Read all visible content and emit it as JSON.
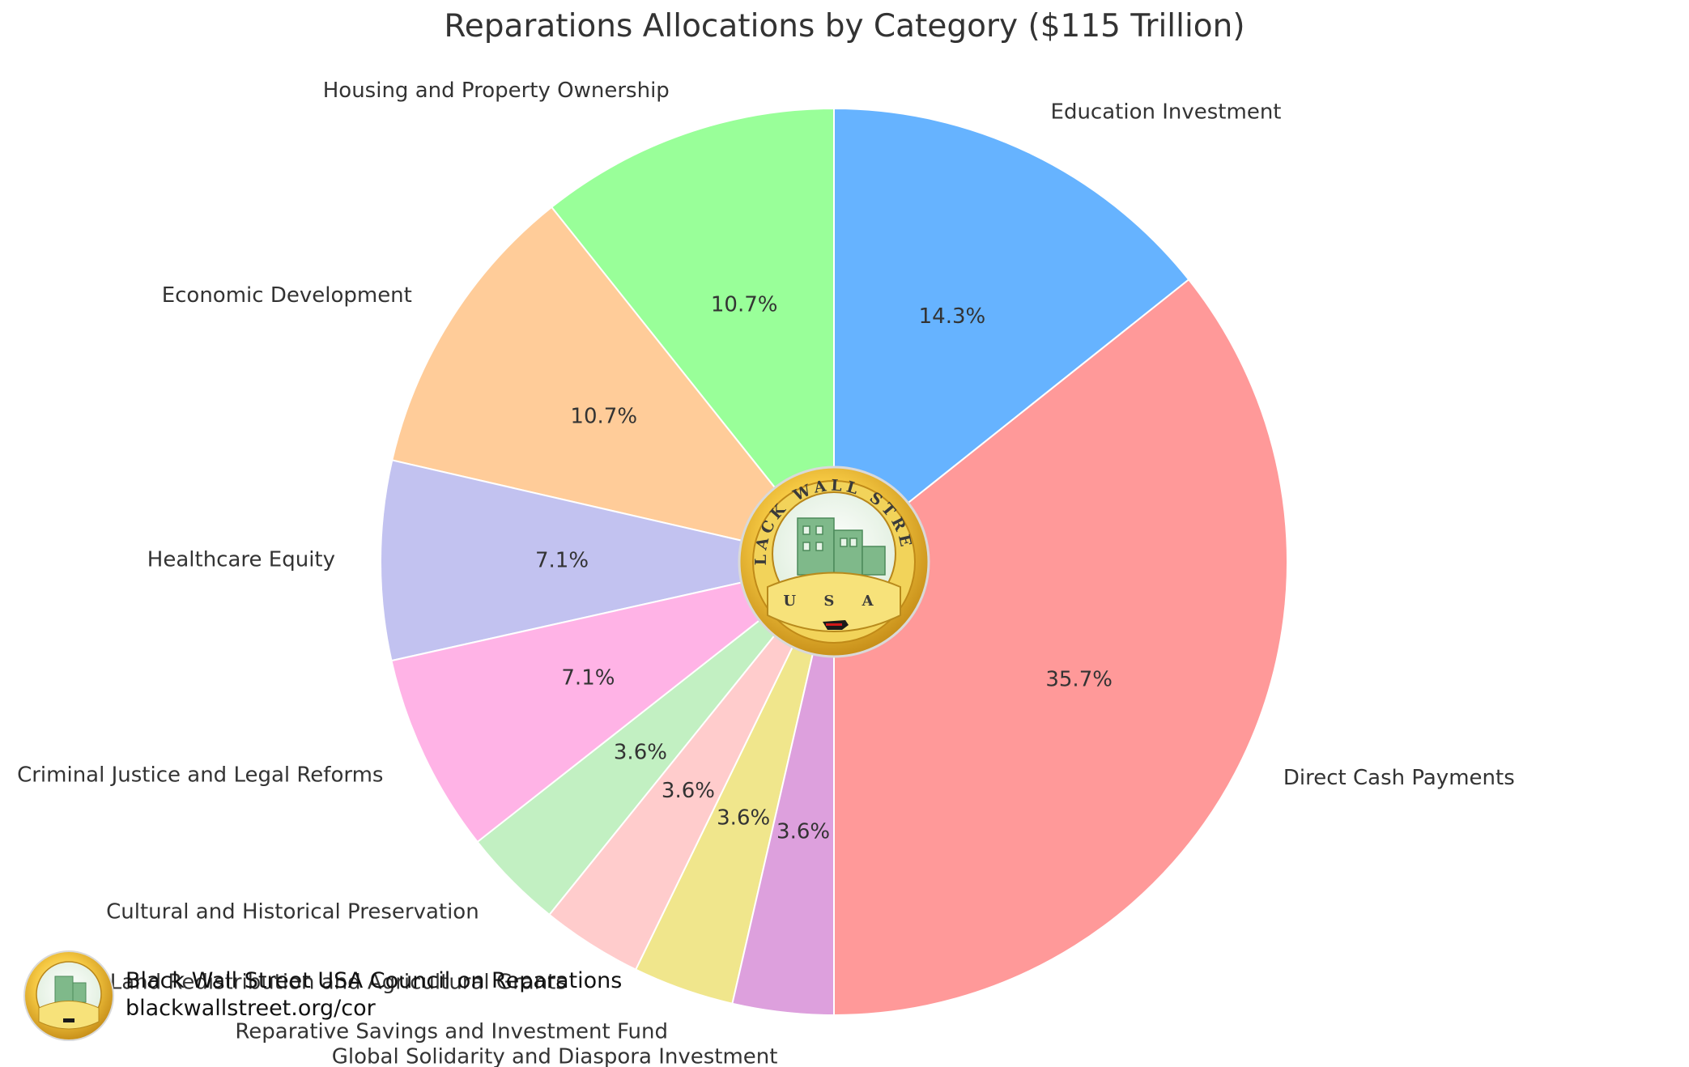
{
  "chart_data": {
    "type": "pie",
    "title": "Reparations Allocations by Category ($115 Trillion)",
    "categories": [
      "Direct Cash Payments",
      "Education Investment",
      "Housing and Property Ownership",
      "Economic Development",
      "Healthcare Equity",
      "Criminal Justice and Legal Reforms",
      "Cultural and Historical Preservation",
      "Land Redistribution and Agricultural Grants",
      "Reparative Savings and Investment Fund",
      "Global Solidarity and Diaspora Investment"
    ],
    "values": [
      35.7,
      14.3,
      10.7,
      10.7,
      7.1,
      7.1,
      3.6,
      3.6,
      3.6,
      3.6
    ],
    "value_labels": [
      "35.7%",
      "14.3%",
      "10.7%",
      "10.7%",
      "7.1%",
      "7.1%",
      "3.6%",
      "3.6%",
      "3.6%",
      "3.6%"
    ],
    "colors": [
      "#ff9999",
      "#66b3ff",
      "#99ff99",
      "#ffcc99",
      "#c2c2f0",
      "#ffb3e6",
      "#c2f0c2",
      "#ffcccc",
      "#f0e68c",
      "#dda0dd"
    ],
    "start_angle_deg": 270,
    "direction": "counterclockwise",
    "legend": "none",
    "center_logo": {
      "top_arc_text": "BLACK WALL STREET",
      "bottom_text": "U S A"
    }
  },
  "footer": {
    "line1": "Black Wall Street USA Council on Reparations",
    "line2": "blackwallstreet.org/cor"
  }
}
